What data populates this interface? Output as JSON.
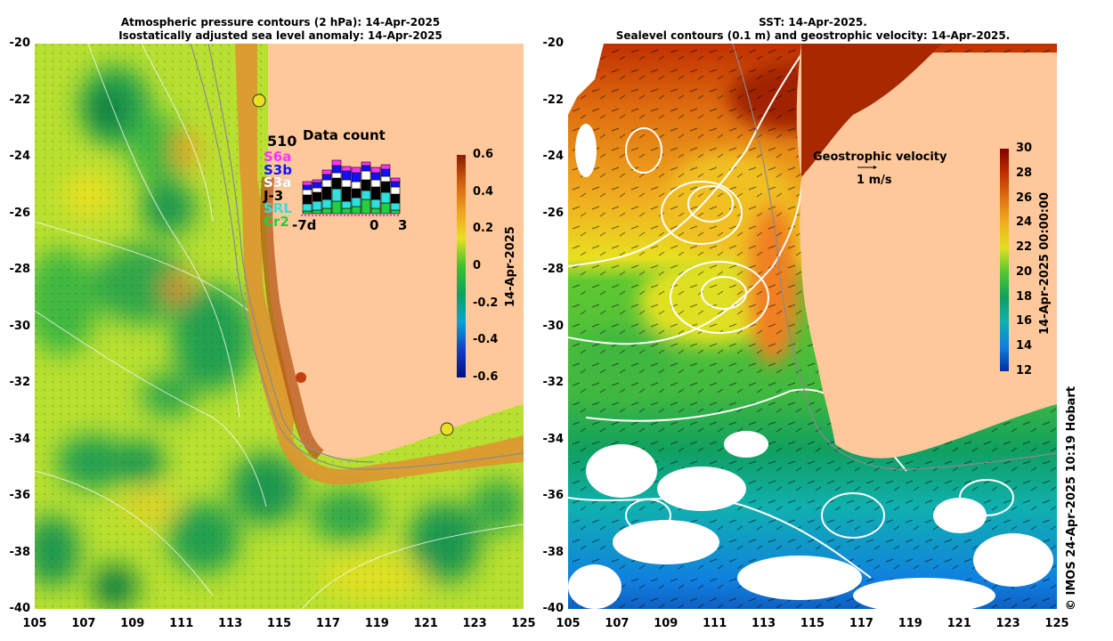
{
  "left_panel": {
    "title_line1": "Atmospheric pressure contours (2 hPa): 14-Apr-2025",
    "title_line2": "Isostatically adjusted sea level anomaly: 14-Apr-2025",
    "colorbar": {
      "ticks": [
        "0.6",
        "0.4",
        "0.2",
        "0",
        "-0.2",
        "-0.4",
        "-0.6"
      ],
      "label": "14-Apr-2025",
      "colors": [
        "#8a1c00",
        "#d06010",
        "#f0a020",
        "#e8e020",
        "#40c030",
        "#10a060",
        "#10a0d0",
        "#1040c0",
        "#001080"
      ]
    },
    "data_count": {
      "max_label": "510",
      "title": "Data count",
      "satellites": [
        {
          "name": "S6a",
          "color": "#ff30ff"
        },
        {
          "name": "S3b",
          "color": "#1010ff"
        },
        {
          "name": "S3a",
          "color": "#ffffff"
        },
        {
          "name": "J-3",
          "color": "#000000"
        },
        {
          "name": "SRL",
          "color": "#30e0e0"
        },
        {
          "name": "Cr2",
          "color": "#20d040"
        }
      ],
      "axis_left": "-7d",
      "axis_zero": "0",
      "axis_right": "3"
    }
  },
  "right_panel": {
    "title_line1": "SST: 14-Apr-2025.",
    "title_line2": "Sealevel contours (0.1 m) and geostrophic velocity: 14-Apr-2025.",
    "legend_title": "Geostrophic velocity",
    "legend_scale": "1 m/s",
    "colorbar": {
      "ticks": [
        "30",
        "28",
        "26",
        "24",
        "22",
        "20",
        "18",
        "16",
        "14",
        "12"
      ],
      "label": "14-Apr-2025 00:00:00",
      "colors": [
        "#800000",
        "#c03000",
        "#e07010",
        "#f0b020",
        "#e0e020",
        "#50c830",
        "#10a060",
        "#10b0b0",
        "#1080e0",
        "#0030a0"
      ]
    },
    "credit": "© IMOS 24-Apr-2025 10:19 Hobart"
  },
  "axes": {
    "lat_ticks": [
      "-20",
      "-22",
      "-24",
      "-26",
      "-28",
      "-30",
      "-32",
      "-34",
      "-36",
      "-38",
      "-40"
    ],
    "lon_ticks": [
      "105",
      "107",
      "109",
      "111",
      "113",
      "115",
      "117",
      "119",
      "121",
      "123",
      "125"
    ]
  }
}
